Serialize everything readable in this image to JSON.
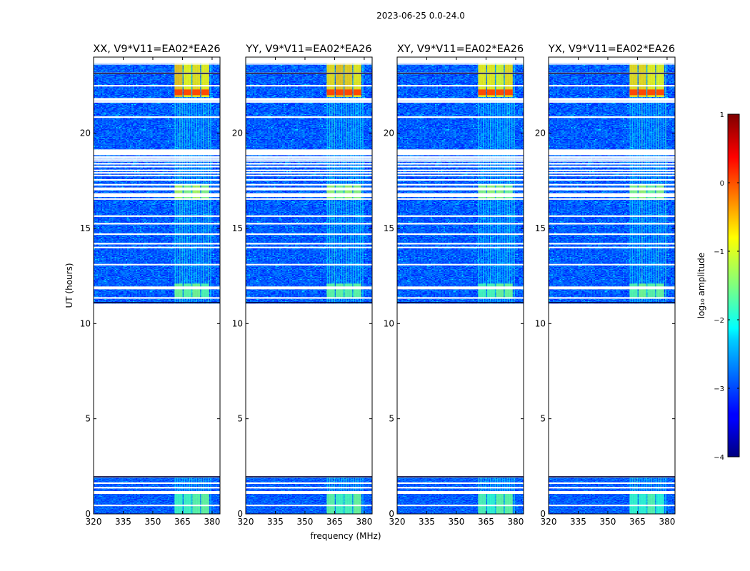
{
  "chart_data": {
    "type": "heatmap",
    "title": "2023-06-25 0.0-24.0",
    "xlabel": "frequency (MHz)",
    "ylabel": "UT (hours)",
    "xlim": [
      320,
      384
    ],
    "ylim": [
      0,
      24
    ],
    "x_ticks": [
      320,
      335,
      350,
      365,
      380
    ],
    "y_ticks": [
      0,
      5,
      10,
      15,
      20
    ],
    "panels": [
      {
        "title": "XX, V9*V11=EA02*EA26"
      },
      {
        "title": "YY, V9*V11=EA02*EA26"
      },
      {
        "title": "XY, V9*V11=EA02*EA26"
      },
      {
        "title": "YX, V9*V11=EA02*EA26"
      }
    ],
    "data_ut_ranges": [
      [
        0.0,
        1.9
      ],
      [
        11.05,
        23.9
      ]
    ],
    "rfi_band_mhz": [
      361,
      380
    ],
    "flagged_rows_ut": [
      0.45,
      1.15,
      1.38,
      1.62,
      11.35,
      11.9,
      13.1,
      14.0,
      14.2,
      14.7,
      15.25,
      15.65,
      16.55,
      16.8,
      17.05,
      17.3,
      17.55,
      17.78,
      17.92,
      18.05,
      18.25,
      18.4,
      18.55,
      18.65,
      18.75,
      18.9,
      19.1,
      20.85,
      21.65,
      22.5,
      23.15,
      23.65
    ],
    "colorbar": {
      "label": "log₁₀ amplitude",
      "range": [
        -4,
        1
      ],
      "ticks": [
        1,
        0,
        -1,
        -2,
        -3,
        -4
      ],
      "tick_labels": [
        "1",
        "0",
        "−1",
        "−2",
        "−3",
        "−4"
      ]
    }
  }
}
